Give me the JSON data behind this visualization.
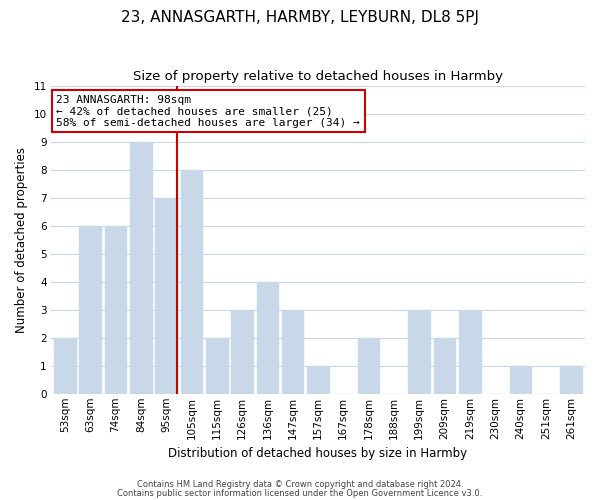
{
  "title": "23, ANNASGARTH, HARMBY, LEYBURN, DL8 5PJ",
  "subtitle": "Size of property relative to detached houses in Harmby",
  "xlabel": "Distribution of detached houses by size in Harmby",
  "ylabel": "Number of detached properties",
  "footer_line1": "Contains HM Land Registry data © Crown copyright and database right 2024.",
  "footer_line2": "Contains public sector information licensed under the Open Government Licence v3.0.",
  "bar_labels": [
    "53sqm",
    "63sqm",
    "74sqm",
    "84sqm",
    "95sqm",
    "105sqm",
    "115sqm",
    "126sqm",
    "136sqm",
    "147sqm",
    "157sqm",
    "167sqm",
    "178sqm",
    "188sqm",
    "199sqm",
    "209sqm",
    "219sqm",
    "230sqm",
    "240sqm",
    "251sqm",
    "261sqm"
  ],
  "bar_values": [
    2,
    6,
    6,
    9,
    7,
    8,
    2,
    3,
    4,
    3,
    1,
    0,
    2,
    0,
    3,
    2,
    3,
    0,
    1,
    0,
    1
  ],
  "bar_color": "#c8d8e8",
  "highlight_bar_index": 4,
  "highlight_line_color": "#cc0000",
  "annotation_line1": "23 ANNASGARTH: 98sqm",
  "annotation_line2": "← 42% of detached houses are smaller (25)",
  "annotation_line3": "58% of semi-detached houses are larger (34) →",
  "annotation_box_edgecolor": "#cc0000",
  "annotation_box_facecolor": "#ffffff",
  "ylim": [
    0,
    11
  ],
  "yticks": [
    0,
    1,
    2,
    3,
    4,
    5,
    6,
    7,
    8,
    9,
    10,
    11
  ],
  "grid_color": "#c8d8e8",
  "background_color": "#ffffff",
  "title_fontsize": 11,
  "subtitle_fontsize": 9.5,
  "axis_label_fontsize": 8.5,
  "tick_fontsize": 7.5,
  "annotation_fontsize": 8,
  "footer_fontsize": 6
}
